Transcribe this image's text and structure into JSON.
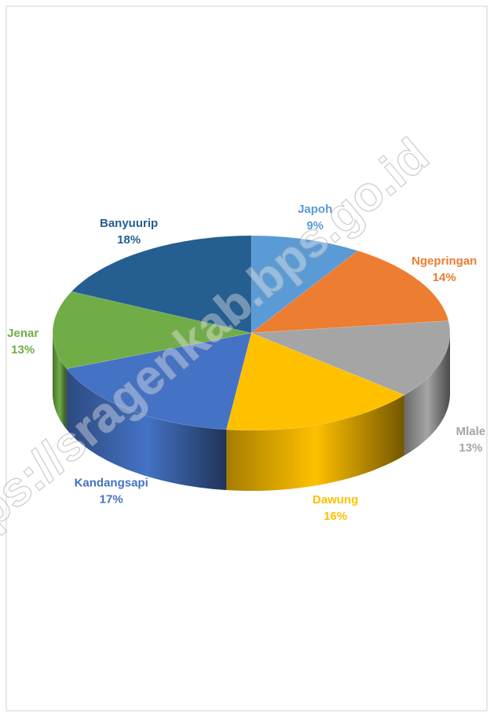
{
  "chart_data": {
    "type": "pie",
    "categories": [
      "Japoh",
      "Ngepringan",
      "Mlale",
      "Dawung",
      "Kandangsapi",
      "Jenar",
      "Banyuurip"
    ],
    "values": [
      9,
      14,
      13,
      16,
      17,
      13,
      18
    ],
    "value_labels": [
      "9%",
      "14%",
      "13%",
      "16%",
      "17%",
      "13%",
      "18%"
    ],
    "colors": [
      "#5b9bd5",
      "#ed7d31",
      "#a5a5a5",
      "#ffc000",
      "#4472c4",
      "#70ad47",
      "#255e91"
    ],
    "watermark": "ps://sragenkab.bps.go.id"
  }
}
